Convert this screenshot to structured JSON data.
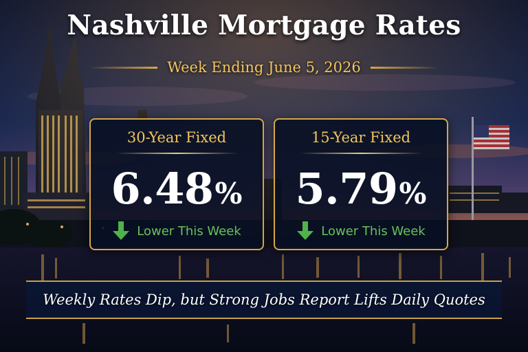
{
  "header": {
    "title": "Nashville Mortgage Rates",
    "subtitle": "Week Ending June 5, 2026"
  },
  "cards": [
    {
      "label": "30-Year Fixed",
      "rate": "6.48",
      "unit": "%",
      "trend_text": "Lower This Week",
      "trend_icon": "down-arrow-icon"
    },
    {
      "label": "15-Year Fixed",
      "rate": "5.79",
      "unit": "%",
      "trend_text": "Lower This Week",
      "trend_icon": "down-arrow-icon"
    }
  ],
  "banner": {
    "headline": "Weekly Rates Dip, but Strong Jobs Report Lifts Daily Quotes"
  },
  "colors": {
    "gold": "#d4a847",
    "gold_text": "#f2c55c",
    "trend_green": "#67c25a",
    "card_bg": "#081024",
    "text_white": "#ffffff"
  }
}
